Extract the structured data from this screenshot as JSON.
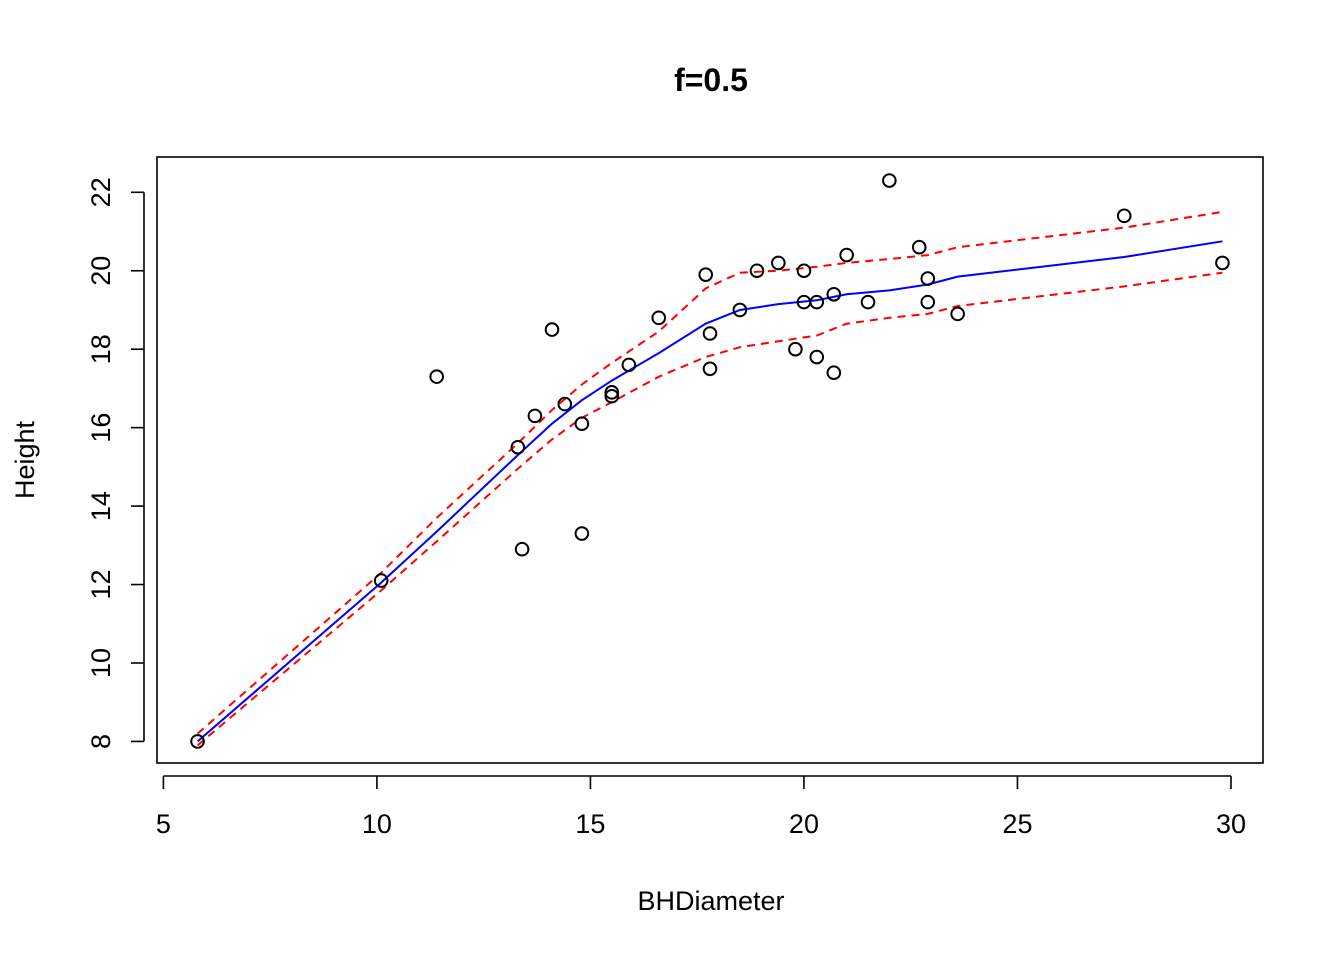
{
  "chart_data": {
    "type": "scatter",
    "title": "f=0.5",
    "xlabel": "BHDiameter",
    "ylabel": "Height",
    "xlim": [
      4.85,
      30.75
    ],
    "ylim": [
      7.45,
      22.9
    ],
    "xticks": [
      5,
      10,
      15,
      20,
      25,
      30
    ],
    "yticks": [
      8,
      10,
      12,
      14,
      16,
      18,
      20,
      22
    ],
    "grid": false,
    "legend": "none",
    "points": {
      "x": [
        5.8,
        10.1,
        11.4,
        13.3,
        13.4,
        13.7,
        14.1,
        14.4,
        14.8,
        14.8,
        15.5,
        15.5,
        15.9,
        16.6,
        17.7,
        17.8,
        17.8,
        18.5,
        18.9,
        19.4,
        19.8,
        20.0,
        20.0,
        20.3,
        20.3,
        20.7,
        20.7,
        21.0,
        21.5,
        22.0,
        22.7,
        22.9,
        22.9,
        23.6,
        27.5,
        29.8
      ],
      "y": [
        8.0,
        12.1,
        17.3,
        15.5,
        12.9,
        16.3,
        18.5,
        16.6,
        16.1,
        13.3,
        16.9,
        16.8,
        17.6,
        18.8,
        19.9,
        18.4,
        17.5,
        19.0,
        20.0,
        20.2,
        18.0,
        20.0,
        19.2,
        19.2,
        17.8,
        19.4,
        17.4,
        20.4,
        19.2,
        22.3,
        20.6,
        19.8,
        19.2,
        18.9,
        21.4,
        20.2
      ]
    },
    "series": [
      {
        "role": "fit",
        "color": "#0000ff",
        "style": "solid",
        "x": [
          5.8,
          10.1,
          11.4,
          13.3,
          14.1,
          14.8,
          15.5,
          16.6,
          17.7,
          18.5,
          19.4,
          20.3,
          21.0,
          22.0,
          22.9,
          23.6,
          27.5,
          29.8
        ],
        "y": [
          8.0,
          12.05,
          13.35,
          15.3,
          16.1,
          16.7,
          17.2,
          17.9,
          18.65,
          19.0,
          19.15,
          19.25,
          19.4,
          19.5,
          19.65,
          19.85,
          20.35,
          20.75
        ]
      },
      {
        "role": "upper-band",
        "color": "#ff0000",
        "style": "dashed",
        "x": [
          5.8,
          10.1,
          11.4,
          13.3,
          14.1,
          14.8,
          15.5,
          16.6,
          17.7,
          18.5,
          19.4,
          20.3,
          21.0,
          22.0,
          22.9,
          23.6,
          27.5,
          29.8
        ],
        "y": [
          8.2,
          12.3,
          13.7,
          15.6,
          16.45,
          17.1,
          17.65,
          18.45,
          19.55,
          19.95,
          20.0,
          20.1,
          20.2,
          20.3,
          20.4,
          20.6,
          21.1,
          21.5
        ]
      },
      {
        "role": "lower-band",
        "color": "#ff0000",
        "style": "dashed",
        "x": [
          5.8,
          10.1,
          11.4,
          13.3,
          14.1,
          14.8,
          15.5,
          16.6,
          17.7,
          18.5,
          19.4,
          20.3,
          21.0,
          22.0,
          22.9,
          23.6,
          27.5,
          29.8
        ],
        "y": [
          7.9,
          11.85,
          13.1,
          14.95,
          15.7,
          16.25,
          16.65,
          17.3,
          17.8,
          18.05,
          18.2,
          18.35,
          18.65,
          18.8,
          18.9,
          19.1,
          19.6,
          19.95
        ]
      }
    ]
  }
}
